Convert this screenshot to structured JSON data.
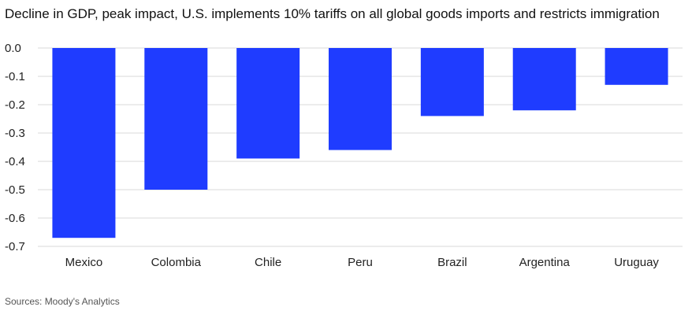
{
  "chart_data": {
    "type": "bar",
    "title": "Decline in GDP, peak impact, U.S. implements 10% tariffs on all global goods imports and restricts immigration",
    "xlabel": "",
    "ylabel": "",
    "categories": [
      "Mexico",
      "Colombia",
      "Chile",
      "Peru",
      "Brazil",
      "Argentina",
      "Uruguay"
    ],
    "values": [
      -0.67,
      -0.5,
      -0.39,
      -0.36,
      -0.24,
      -0.22,
      -0.13
    ],
    "ylim": [
      -0.7,
      0.0
    ],
    "yticks": [
      0.0,
      -0.1,
      -0.2,
      -0.3,
      -0.4,
      -0.5,
      -0.6,
      -0.7
    ],
    "ytick_labels": [
      "0.0",
      "-0.1",
      "-0.2",
      "-0.3",
      "-0.4",
      "-0.5",
      "-0.6",
      "-0.7"
    ],
    "grid": true,
    "bar_color": "#1f3cff",
    "grid_color": "#d9d9d9",
    "source": "Sources: Moody's Analytics"
  }
}
